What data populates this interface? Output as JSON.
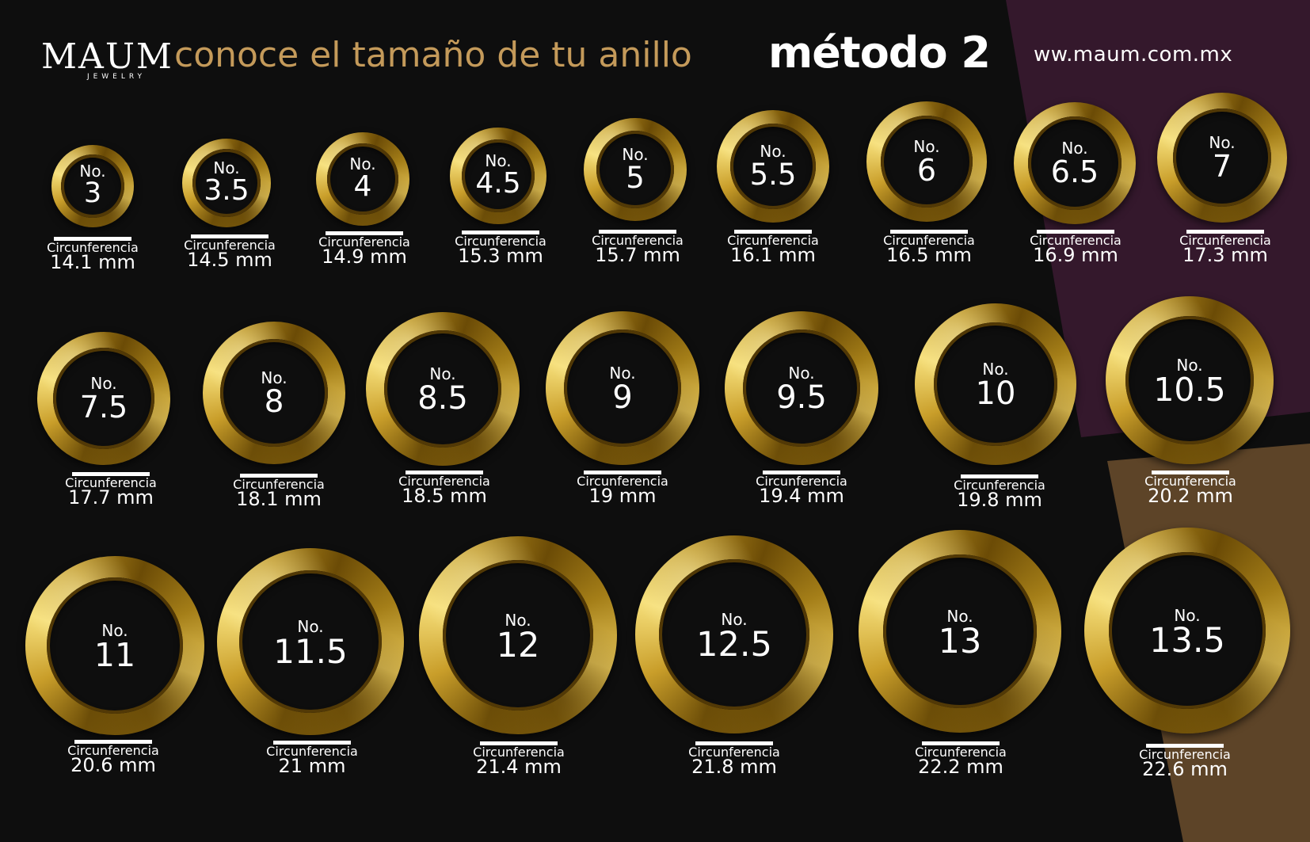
{
  "colors": {
    "background": "#0e0e0e",
    "accent_gold_text": "#c49a5a",
    "panel_purple": "#34182c",
    "panel_brown": "#5d4428",
    "text": "#ffffff"
  },
  "header": {
    "logo_main": "MAUM",
    "logo_sub": "JEWELRY",
    "title": "conoce el tamaño de tu anillo",
    "method": "método 2",
    "website": "ww.maum.com.mx"
  },
  "rings": [
    {
      "no_label": "No.",
      "size": "3",
      "circ_label": "Circunferencia",
      "circ_value": "14.1 mm"
    },
    {
      "no_label": "No.",
      "size": "3.5",
      "circ_label": "Circunferencia",
      "circ_value": "14.5 mm"
    },
    {
      "no_label": "No.",
      "size": "4",
      "circ_label": "Circunferencia",
      "circ_value": "14.9 mm"
    },
    {
      "no_label": "No.",
      "size": "4.5",
      "circ_label": "Circunferencia",
      "circ_value": "15.3 mm"
    },
    {
      "no_label": "No.",
      "size": "5",
      "circ_label": "Circunferencia",
      "circ_value": "15.7 mm"
    },
    {
      "no_label": "No.",
      "size": "5.5",
      "circ_label": "Circunferencia",
      "circ_value": "16.1 mm"
    },
    {
      "no_label": "No.",
      "size": "6",
      "circ_label": "Circunferencia",
      "circ_value": "16.5 mm"
    },
    {
      "no_label": "No.",
      "size": "6.5",
      "circ_label": "Circunferencia",
      "circ_value": "16.9 mm"
    },
    {
      "no_label": "No.",
      "size": "7",
      "circ_label": "Circunferencia",
      "circ_value": "17.3 mm"
    },
    {
      "no_label": "No.",
      "size": "7.5",
      "circ_label": "Circunferencia",
      "circ_value": "17.7 mm"
    },
    {
      "no_label": "No.",
      "size": "8",
      "circ_label": "Circunferencia",
      "circ_value": "18.1 mm"
    },
    {
      "no_label": "No.",
      "size": "8.5",
      "circ_label": "Circunferencia",
      "circ_value": "18.5 mm"
    },
    {
      "no_label": "No.",
      "size": "9",
      "circ_label": "Circunferencia",
      "circ_value": "19 mm"
    },
    {
      "no_label": "No.",
      "size": "9.5",
      "circ_label": "Circunferencia",
      "circ_value": "19.4 mm"
    },
    {
      "no_label": "No.",
      "size": "10",
      "circ_label": "Circunferencia",
      "circ_value": "19.8 mm"
    },
    {
      "no_label": "No.",
      "size": "10.5",
      "circ_label": "Circunferencia",
      "circ_value": "20.2 mm"
    },
    {
      "no_label": "No.",
      "size": "11",
      "circ_label": "Circunferencia",
      "circ_value": "20.6 mm"
    },
    {
      "no_label": "No.",
      "size": "11.5",
      "circ_label": "Circunferencia",
      "circ_value": "21 mm"
    },
    {
      "no_label": "No.",
      "size": "12",
      "circ_label": "Circunferencia",
      "circ_value": "21.4 mm"
    },
    {
      "no_label": "No.",
      "size": "12.5",
      "circ_label": "Circunferencia",
      "circ_value": "21.8 mm"
    },
    {
      "no_label": "No.",
      "size": "13",
      "circ_label": "Circunferencia",
      "circ_value": "22.2 mm"
    },
    {
      "no_label": "No.",
      "size": "13.5",
      "circ_label": "Circunferencia",
      "circ_value": "22.6 mm"
    }
  ]
}
